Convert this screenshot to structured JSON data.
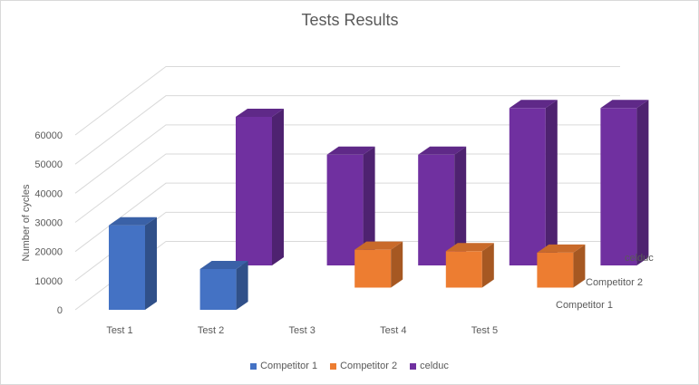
{
  "chart_data": {
    "type": "bar",
    "subtype": "3d-column",
    "title": "Tests Results",
    "xlabel": "",
    "ylabel": "Number  of cycles",
    "categories": [
      "Test 1",
      "Test 2",
      "Test 3",
      "Test 4",
      "Test 5"
    ],
    "ylim": [
      0,
      60000
    ],
    "yticks": [
      "0",
      "10000",
      "20000",
      "30000",
      "40000",
      "50000",
      "60000"
    ],
    "grid": true,
    "legend_position": "bottom",
    "series": [
      {
        "name": "Competitor 1",
        "color": "#4472c4",
        "values": [
          29000,
          14000,
          null,
          null,
          null
        ]
      },
      {
        "name": "Competitor 2",
        "color": "#ed7d31",
        "values": [
          null,
          null,
          13000,
          12500,
          12000
        ]
      },
      {
        "name": "celduc",
        "color": "#7030a0",
        "values": [
          51000,
          38000,
          38000,
          54000,
          54000
        ]
      }
    ]
  }
}
